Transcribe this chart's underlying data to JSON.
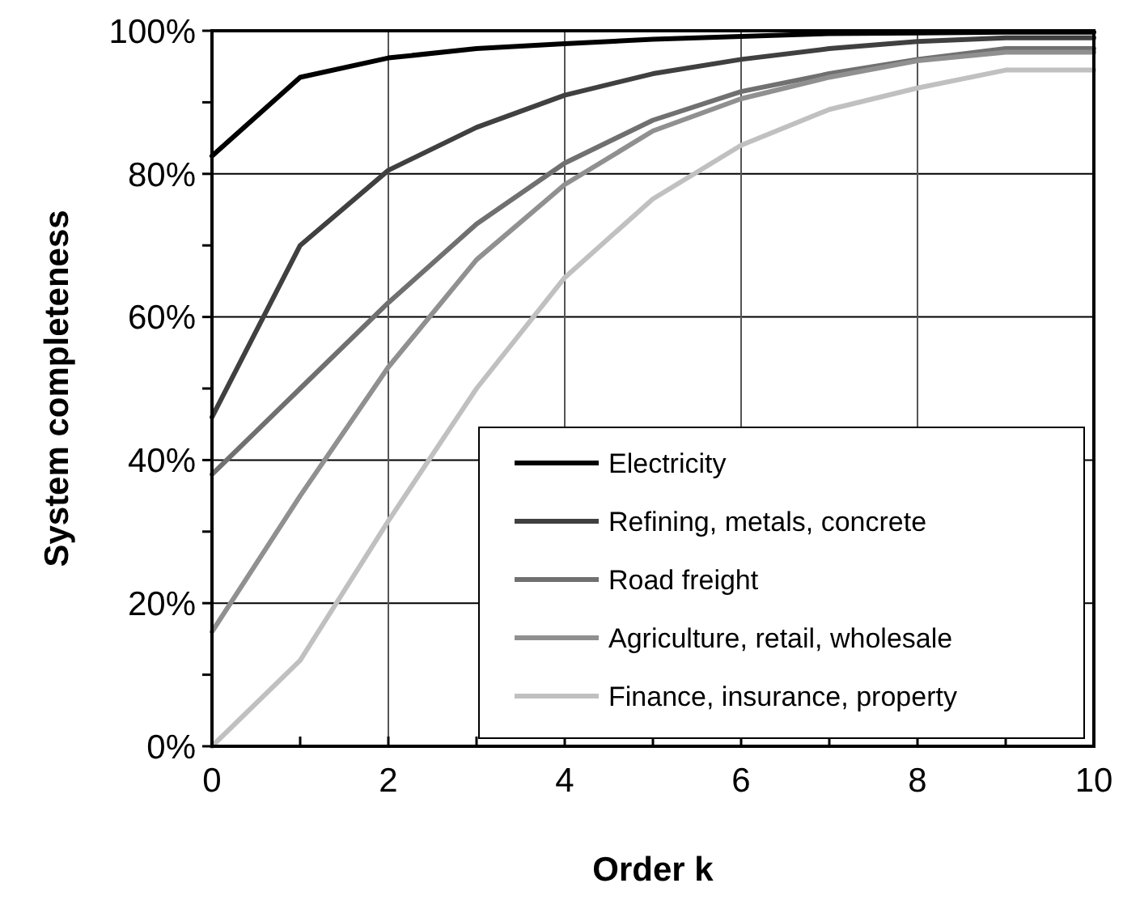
{
  "chart_data": {
    "type": "line",
    "xlabel": "Order k",
    "ylabel": "System completeness",
    "x": [
      0,
      1,
      2,
      3,
      4,
      5,
      6,
      7,
      8,
      9,
      10
    ],
    "xlim": [
      0,
      10
    ],
    "xticks": [
      0,
      {
        "value": 1,
        "label": null
      },
      2,
      {
        "value": 3,
        "label": null
      },
      4,
      {
        "value": 5,
        "label": null
      },
      6,
      {
        "value": 7,
        "label": null
      },
      8,
      {
        "value": 9,
        "label": null
      },
      10
    ],
    "ylim": [
      0,
      100
    ],
    "yticks": [
      {
        "value": 0,
        "label": "0%"
      },
      {
        "value": 10,
        "label": null
      },
      {
        "value": 20,
        "label": "20%"
      },
      {
        "value": 30,
        "label": null
      },
      {
        "value": 40,
        "label": "40%"
      },
      {
        "value": 50,
        "label": null
      },
      {
        "value": 60,
        "label": "60%"
      },
      {
        "value": 70,
        "label": null
      },
      {
        "value": 80,
        "label": "80%"
      },
      {
        "value": 90,
        "label": null
      },
      {
        "value": 100,
        "label": "100%"
      }
    ],
    "grid": true,
    "legend": "bottom right",
    "marker": "none",
    "line_style": "solid",
    "series": [
      {
        "name": "Electricity",
        "color": "#000000",
        "values": [
          82.5,
          93.5,
          96.2,
          97.5,
          98.2,
          98.8,
          99.2,
          99.6,
          99.7,
          99.8,
          99.8
        ]
      },
      {
        "name": "Refining, metals, concrete",
        "color": "#404040",
        "values": [
          46,
          70,
          80.5,
          86.5,
          91,
          94,
          96,
          97.5,
          98.5,
          99,
          99
        ]
      },
      {
        "name": "Road freight",
        "color": "#707070",
        "values": [
          38,
          50,
          62,
          73,
          81.5,
          87.5,
          91.5,
          94,
          96,
          97.5,
          97.5
        ]
      },
      {
        "name": "Agriculture, retail, wholesale",
        "color": "#909090",
        "values": [
          16,
          35,
          53,
          68,
          78.5,
          86,
          90.5,
          93.5,
          95.8,
          97,
          97
        ]
      },
      {
        "name": "Finance, insurance, property",
        "color": "#c0c0c0",
        "values": [
          0,
          12,
          31.5,
          50,
          65.5,
          76.5,
          84,
          89,
          92,
          94.5,
          94.5
        ]
      }
    ]
  }
}
